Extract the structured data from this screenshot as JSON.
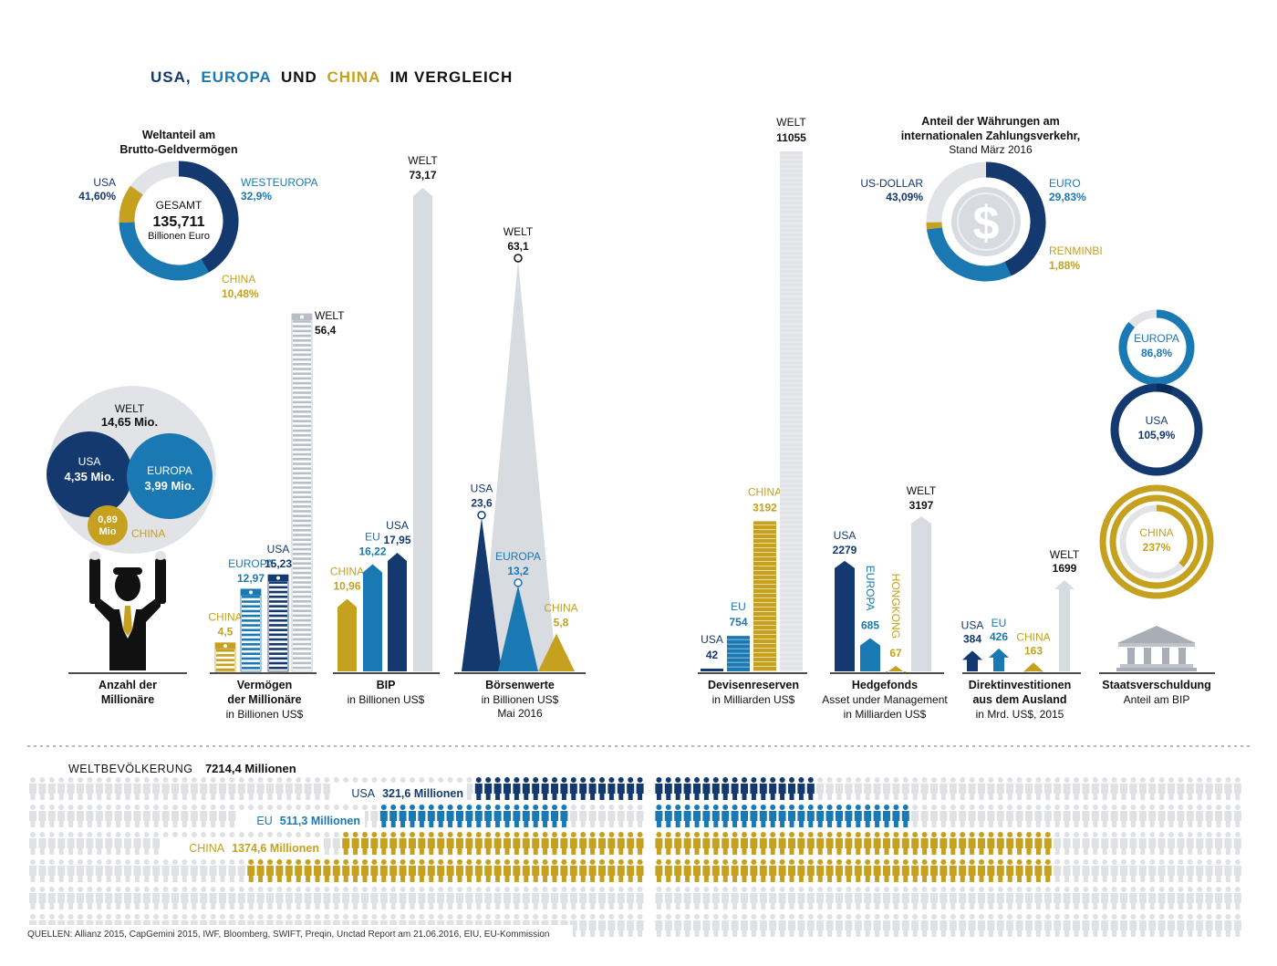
{
  "header": {
    "title_parts": [
      {
        "text": "USA,",
        "color": "#13396e"
      },
      {
        "text": "EUROPA",
        "color": "#1a79b3"
      },
      {
        "text": "UND",
        "color": "#111111"
      },
      {
        "text": "CHINA",
        "color": "#c5a11f"
      },
      {
        "text": "IM VERGLEICH",
        "color": "#111111"
      }
    ]
  },
  "colors": {
    "usa": "#13396e",
    "europa": "#1a79b3",
    "china": "#c5a11f",
    "welt": "#d8dbe0",
    "text": "#111111"
  },
  "chart_data": [
    {
      "type": "pie",
      "title": "Weltanteil am Brutto-Geldvermögen",
      "center": {
        "label": "GESAMT",
        "value": "135,711",
        "unit": "Billionen Euro"
      },
      "slices": [
        {
          "name": "USA",
          "value": 41.6,
          "label": "41,60%"
        },
        {
          "name": "WESTEUROPA",
          "value": 32.9,
          "label": "32,9%"
        },
        {
          "name": "CHINA",
          "value": 10.48,
          "label": "10,48%"
        }
      ]
    },
    {
      "type": "bubble",
      "title": "Anzahl der Millionäre",
      "items": [
        {
          "name": "WELT",
          "value": "14,65 Mio."
        },
        {
          "name": "USA",
          "value": "4,35 Mio."
        },
        {
          "name": "EUROPA",
          "value": "3,99 Mio."
        },
        {
          "name": "CHINA",
          "value": "0,89 Mio"
        }
      ]
    },
    {
      "type": "bar",
      "title": "Vermögen der Millionäre",
      "subtitle": "in Billionen US$",
      "categories": [
        "CHINA",
        "EUROPA",
        "USA",
        "WELT"
      ],
      "values": [
        4.5,
        12.97,
        15.23,
        56.4
      ],
      "labels": [
        "4,5",
        "12,97",
        "15,23",
        "56,4"
      ]
    },
    {
      "type": "bar",
      "title": "BIP",
      "subtitle": "in Billionen US$",
      "categories": [
        "CHINA",
        "EU",
        "USA",
        "WELT"
      ],
      "values": [
        10.96,
        16.22,
        17.95,
        73.17
      ],
      "labels": [
        "10,96",
        "16,22",
        "17,95",
        "73,17"
      ]
    },
    {
      "type": "area",
      "title": "Börsenwerte",
      "subtitle": "in Billionen US$",
      "subtitle2": "Mai 2016",
      "categories": [
        "USA",
        "EUROPA",
        "CHINA",
        "WELT"
      ],
      "values": [
        23.6,
        13.2,
        5.8,
        63.1
      ],
      "labels": [
        "23,6",
        "13,2",
        "5,8",
        "63,1"
      ]
    },
    {
      "type": "bar",
      "title": "Devisenreserven",
      "subtitle": "in Milliarden US$",
      "categories": [
        "USA",
        "EU",
        "CHINA",
        "WELT"
      ],
      "values": [
        42,
        754,
        3192,
        11055
      ],
      "labels": [
        "42",
        "754",
        "3192",
        "11055"
      ]
    },
    {
      "type": "pie",
      "title": "Anteil der Währungen am internationalen Zahlungsverkehr,",
      "subtitle": "Stand März 2016",
      "slices": [
        {
          "name": "US-DOLLAR",
          "value": 43.09,
          "label": "43,09%"
        },
        {
          "name": "EURO",
          "value": 29.83,
          "label": "29,83%"
        },
        {
          "name": "RENMINBI",
          "value": 1.88,
          "label": "1,88%"
        }
      ]
    },
    {
      "type": "bar",
      "title": "Hedgefonds",
      "subtitle": "Asset under Management",
      "subtitle2": "in Milliarden US$",
      "categories": [
        "USA",
        "EUROPA",
        "HONGKONG",
        "WELT"
      ],
      "values": [
        2279,
        685,
        67,
        3197
      ],
      "labels": [
        "2279",
        "685",
        "67",
        "3197"
      ]
    },
    {
      "type": "bar",
      "title": "Direktinvestitionen aus dem Ausland",
      "subtitle": "in Mrd. US$, 2015",
      "categories": [
        "USA",
        "EU",
        "CHINA",
        "WELT"
      ],
      "values": [
        384,
        426,
        163,
        1699
      ],
      "labels": [
        "384",
        "426",
        "163",
        "1699"
      ]
    },
    {
      "type": "pie",
      "title": "Staatsverschuldung",
      "subtitle": "Anteil am BIP",
      "slices": [
        {
          "name": "EUROPA",
          "value": 86.8,
          "label": "86,8%"
        },
        {
          "name": "USA",
          "value": 105.9,
          "label": "105,9%"
        },
        {
          "name": "CHINA",
          "value": 237,
          "label": "237%"
        }
      ]
    },
    {
      "type": "bar",
      "title": "WELTBEVÖLKERUNG",
      "total": 7214.4,
      "total_label": "7214,4 Millionen",
      "categories": [
        "USA",
        "EU",
        "CHINA"
      ],
      "values": [
        321.6,
        511.3,
        1374.6
      ],
      "labels": [
        "321,6 Millionen",
        "511,3 Millionen",
        "1374,6 Millionen"
      ]
    }
  ],
  "texts": {
    "geld_title": [
      "Weltanteil am",
      "Brutto-Geldvermögen"
    ],
    "mill_title": [
      "Anzahl der",
      "Millionäre"
    ],
    "verm_title": [
      "Vermögen",
      "der Millionäre"
    ],
    "verm_sub": "in Billionen US$",
    "bip_title": "BIP",
    "bip_sub": "in Billionen US$",
    "boers_title": "Börsenwerte",
    "boers_sub": [
      "in Billionen US$",
      "Mai 2016"
    ],
    "devisen_title": "Devisenreserven",
    "devisen_sub": "in Milliarden US$",
    "waehr_title": [
      "Anteil der Währungen am",
      "internationalen Zahlungsverkehr,"
    ],
    "waehr_sub": "Stand März 2016",
    "hedge_title": "Hedgefonds",
    "hedge_sub": [
      "Asset under Management",
      "in Milliarden US$"
    ],
    "direkt_title": [
      "Direktinvestitionen",
      "aus dem Ausland"
    ],
    "direkt_sub": "in Mrd. US$, 2015",
    "staat_title": "Staatsverschuldung",
    "staat_sub": "Anteil am BIP",
    "welt": "WELT",
    "pop_label": "WELTBEVÖLKERUNG",
    "sources": "QUELLEN: Allianz 2015, CapGemini 2015, IWF, Bloomberg, SWIFT, Preqin, Unctad Report am 21.06.2016, EIU, EU-Kommission"
  }
}
